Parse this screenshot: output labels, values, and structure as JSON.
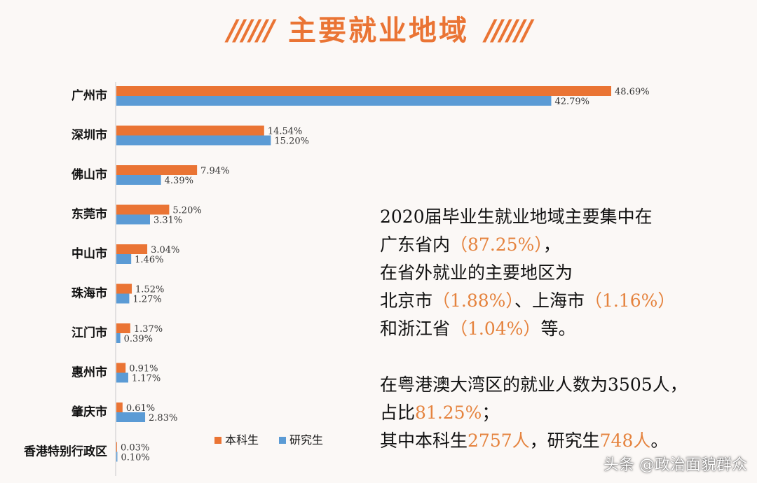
{
  "title": "主要就业地域",
  "title_decoration": "//////",
  "colors": {
    "undergrad": "#ea7434",
    "graduate": "#5b9bd5",
    "highlight": "#e5833e",
    "title": "#ea7434"
  },
  "chart_data": {
    "type": "bar",
    "orientation": "horizontal",
    "categories": [
      "广州市",
      "深圳市",
      "佛山市",
      "东莞市",
      "中山市",
      "珠海市",
      "江门市",
      "惠州市",
      "肇庆市",
      "香港特别行政区"
    ],
    "series": [
      {
        "name": "本科生",
        "values": [
          48.69,
          14.54,
          7.94,
          5.2,
          3.04,
          1.52,
          1.37,
          0.91,
          0.61,
          0.03
        ],
        "labels": [
          "48.69%",
          "14.54%",
          "7.94%",
          "5.20%",
          "3.04%",
          "1.52%",
          "1.37%",
          "0.91%",
          "0.61%",
          "0.03%"
        ]
      },
      {
        "name": "研究生",
        "values": [
          42.79,
          15.2,
          4.39,
          3.31,
          1.46,
          1.27,
          0.39,
          1.17,
          2.83,
          0.1
        ],
        "labels": [
          "42.79%",
          "15.20%",
          "4.39%",
          "3.31%",
          "1.46%",
          "1.27%",
          "0.39%",
          "1.17%",
          "2.83%",
          "0.10%"
        ]
      }
    ],
    "legend_position": "bottom",
    "grid": false
  },
  "note": {
    "para1": [
      [
        {
          "t": "2020届毕业生就业地域主要集中在"
        }
      ],
      [
        {
          "t": "广东省内"
        },
        {
          "t": "（87.25%）",
          "hl": true
        },
        {
          "t": "，"
        }
      ],
      [
        {
          "t": "在省外就业的主要地区为"
        }
      ],
      [
        {
          "t": "北京市"
        },
        {
          "t": "（1.88%）",
          "hl": true
        },
        {
          "t": "、上海市"
        },
        {
          "t": "（1.16%）",
          "hl": true
        }
      ],
      [
        {
          "t": "和浙江省"
        },
        {
          "t": "（1.04%）",
          "hl": true
        },
        {
          "t": "等。"
        }
      ]
    ],
    "para2": [
      [
        {
          "t": "在粤港澳大湾区的就业人数为3505人，"
        }
      ],
      [
        {
          "t": "占比"
        },
        {
          "t": "81.25%",
          "hl": true
        },
        {
          "t": "；"
        }
      ],
      [
        {
          "t": "其中本科生"
        },
        {
          "t": "2757人",
          "hl": true
        },
        {
          "t": "，研究生"
        },
        {
          "t": "748人",
          "hl": true
        },
        {
          "t": "。"
        }
      ]
    ]
  },
  "watermark": "头条 @政治面貌群众"
}
